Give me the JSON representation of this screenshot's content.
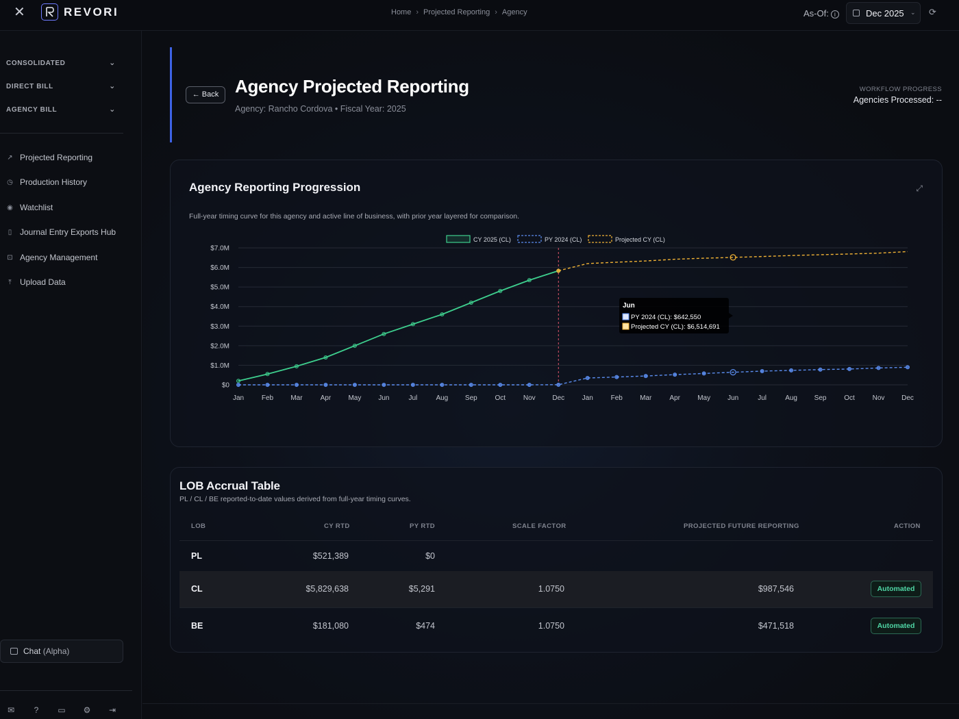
{
  "app": {
    "logo_text": "REVORI"
  },
  "breadcrumb": [
    "Home",
    "Projected Reporting",
    "Agency"
  ],
  "header": {
    "asof_label": "As-Of:",
    "date_value": "Dec 2025"
  },
  "sidebar": {
    "sections": [
      "CONSOLIDATED",
      "DIRECT BILL",
      "AGENCY BILL"
    ],
    "items": [
      {
        "label": "Projected Reporting",
        "icon": "trend-icon"
      },
      {
        "label": "Production History",
        "icon": "clock-icon"
      },
      {
        "label": "Watchlist",
        "icon": "eye-icon"
      },
      {
        "label": "Journal Entry Exports Hub",
        "icon": "file-icon"
      },
      {
        "label": "Agency Management",
        "icon": "briefcase-icon"
      },
      {
        "label": "Upload Data",
        "icon": "upload-icon"
      }
    ],
    "chat_label": "Chat",
    "chat_suffix": "(Alpha)"
  },
  "page": {
    "back_label": "Back",
    "title": "Agency Projected Reporting",
    "subtitle": "Agency: Rancho Cordova • Fiscal Year: 2025",
    "workflow_label": "WORKFLOW PROGRESS",
    "workflow_value": "Agencies Processed: --"
  },
  "chart_card": {
    "title": "Agency Reporting Progression",
    "description": "Full-year timing curve for this agency and active line of business, with prior year layered for comparison.",
    "tooltip": {
      "title": "Jun",
      "lines": [
        "PY 2024 (CL): $642,550",
        "Projected CY (CL): $6,514,691"
      ]
    }
  },
  "chart_data": {
    "type": "line",
    "x": [
      "Jan",
      "Feb",
      "Mar",
      "Apr",
      "May",
      "Jun",
      "Jul",
      "Aug",
      "Sep",
      "Oct",
      "Nov",
      "Dec",
      "Jan",
      "Feb",
      "Mar",
      "Apr",
      "May",
      "Jun",
      "Jul",
      "Aug",
      "Sep",
      "Oct",
      "Nov",
      "Dec"
    ],
    "yticks": [
      "$0",
      "$1.0M",
      "$2.0M",
      "$3.0M",
      "$4.0M",
      "$5.0M",
      "$6.0M",
      "$7.0M"
    ],
    "ylim": [
      0,
      7000000
    ],
    "legend_position": "top-center",
    "grid": true,
    "series": [
      {
        "name": "CY 2025 (CL)",
        "color": "#3ecf8e",
        "style": "solid",
        "values": [
          200000,
          550000,
          950000,
          1400000,
          2000000,
          2600000,
          3100000,
          3600000,
          4200000,
          4800000,
          5350000,
          5829638,
          null,
          null,
          null,
          null,
          null,
          null,
          null,
          null,
          null,
          null,
          null,
          null
        ]
      },
      {
        "name": "PY 2024 (CL)",
        "color": "#5b8def",
        "style": "dashed",
        "values": [
          0,
          0,
          0,
          0,
          0,
          0,
          0,
          0,
          0,
          0,
          0,
          5291,
          350000,
          400000,
          450000,
          520000,
          580000,
          642550,
          700000,
          740000,
          780000,
          810000,
          860000,
          900000
        ]
      },
      {
        "name": "Projected CY (CL)",
        "color": "#f2b335",
        "style": "dashed",
        "values": [
          null,
          null,
          null,
          null,
          null,
          null,
          null,
          null,
          null,
          null,
          null,
          5829638,
          6200000,
          6270000,
          6330000,
          6420000,
          6470000,
          6514691,
          6560000,
          6610000,
          6650000,
          6690000,
          6730000,
          6810000
        ]
      }
    ],
    "marker_line_index": 11,
    "tooltip_index": 17
  },
  "table_card": {
    "title": "LOB Accrual Table",
    "description": "PL / CL / BE reported-to-date values derived from full-year timing curves.",
    "headers": [
      "LOB",
      "CY RTD",
      "PY RTD",
      "SCALE FACTOR",
      "PROJECTED FUTURE REPORTING",
      "ACTION"
    ],
    "rows": [
      {
        "lob": "PL",
        "cy": "$521,389",
        "py": "$0",
        "scale": "",
        "future": "",
        "action": ""
      },
      {
        "lob": "CL",
        "cy": "$5,829,638",
        "py": "$5,291",
        "scale": "1.0750",
        "future": "$987,546",
        "action": "Automated"
      },
      {
        "lob": "BE",
        "cy": "$181,080",
        "py": "$474",
        "scale": "1.0750",
        "future": "$471,518",
        "action": "Automated"
      }
    ]
  }
}
